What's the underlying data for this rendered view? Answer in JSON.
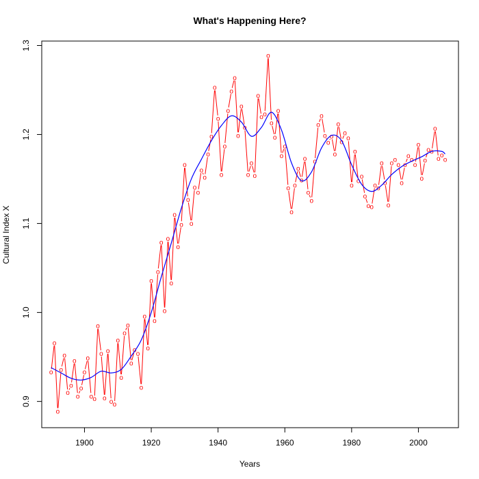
{
  "chart_data": {
    "type": "line",
    "title": "What's Happening Here?",
    "xlabel": "Years",
    "ylabel": "Cultural Index X",
    "xlim": [
      1887.2,
      2012
    ],
    "ylim": [
      0.8705,
      1.305
    ],
    "x_ticks": [
      1900,
      1920,
      1940,
      1960,
      1980,
      2000
    ],
    "y_ticks": [
      0.9,
      1.0,
      1.1,
      1.2,
      1.3
    ],
    "x_tick_labels": [
      "1900",
      "1920",
      "1940",
      "1960",
      "1980",
      "2000"
    ],
    "y_tick_labels": [
      "0.9",
      "1.0",
      "1.1",
      "1.2",
      "1.3"
    ],
    "grid": false,
    "point_symbol": "o",
    "series": [
      {
        "style": "points-and-lines",
        "color": "#ff0000",
        "x": [
          1890,
          1891,
          1892,
          1893,
          1894,
          1895,
          1896,
          1897,
          1898,
          1899,
          1900,
          1901,
          1902,
          1903,
          1904,
          1905,
          1906,
          1907,
          1908,
          1909,
          1910,
          1911,
          1912,
          1913,
          1914,
          1915,
          1916,
          1917,
          1918,
          1919,
          1920,
          1921,
          1922,
          1923,
          1924,
          1925,
          1926,
          1927,
          1928,
          1929,
          1930,
          1931,
          1932,
          1933,
          1934,
          1935,
          1936,
          1937,
          1938,
          1939,
          1940,
          1941,
          1942,
          1943,
          1944,
          1945,
          1946,
          1947,
          1948,
          1949,
          1950,
          1951,
          1952,
          1953,
          1954,
          1955,
          1956,
          1957,
          1958,
          1959,
          1960,
          1961,
          1962,
          1963,
          1964,
          1965,
          1966,
          1967,
          1968,
          1969,
          1970,
          1971,
          1972,
          1973,
          1974,
          1975,
          1976,
          1977,
          1978,
          1979,
          1980,
          1981,
          1982,
          1983,
          1984,
          1985,
          1986,
          1987,
          1988,
          1989,
          1990,
          1991,
          1992,
          1993,
          1994,
          1995,
          1996,
          1997,
          1998,
          1999,
          2000,
          2001,
          2002,
          2003,
          2004,
          2005,
          2006,
          2007,
          2008
        ],
        "y": [
          0.933,
          0.966,
          0.889,
          0.936,
          0.952,
          0.91,
          0.918,
          0.946,
          0.906,
          0.915,
          0.933,
          0.949,
          0.906,
          0.903,
          0.985,
          0.954,
          0.904,
          0.957,
          0.9,
          0.897,
          0.969,
          0.927,
          0.977,
          0.986,
          0.943,
          0.958,
          0.954,
          0.916,
          0.996,
          0.96,
          1.036,
          0.991,
          1.046,
          1.079,
          1.002,
          1.083,
          1.033,
          1.11,
          1.074,
          1.099,
          1.166,
          1.127,
          1.1,
          1.141,
          1.135,
          1.16,
          1.152,
          1.178,
          1.198,
          1.253,
          1.218,
          1.155,
          1.187,
          1.227,
          1.249,
          1.264,
          1.199,
          1.232,
          1.208,
          1.155,
          1.168,
          1.154,
          1.244,
          1.22,
          1.223,
          1.289,
          1.213,
          1.197,
          1.227,
          1.176,
          1.187,
          1.14,
          1.113,
          1.143,
          1.162,
          1.149,
          1.173,
          1.135,
          1.126,
          1.17,
          1.211,
          1.221,
          1.199,
          1.191,
          1.198,
          1.178,
          1.212,
          1.192,
          1.202,
          1.196,
          1.143,
          1.181,
          1.148,
          1.153,
          1.131,
          1.12,
          1.119,
          1.143,
          1.14,
          1.168,
          1.146,
          1.121,
          1.168,
          1.172,
          1.166,
          1.146,
          1.166,
          1.176,
          1.172,
          1.166,
          1.189,
          1.151,
          1.171,
          1.183,
          1.181,
          1.207,
          1.173,
          1.177,
          1.172
        ]
      },
      {
        "style": "smooth-line",
        "color": "#0000ff",
        "x": [
          1890,
          1893,
          1896,
          1899,
          1902,
          1905,
          1908,
          1911,
          1914,
          1917,
          1920,
          1923,
          1926,
          1929,
          1932,
          1935,
          1938,
          1941,
          1944,
          1947,
          1950,
          1953,
          1956,
          1959,
          1962,
          1965,
          1968,
          1971,
          1974,
          1977,
          1980,
          1983,
          1986,
          1989,
          1992,
          1995,
          1998,
          2001,
          2004,
          2007,
          2008
        ],
        "y": [
          0.938,
          0.932,
          0.926,
          0.924,
          0.927,
          0.934,
          0.932,
          0.936,
          0.951,
          0.969,
          1.0,
          1.04,
          1.078,
          1.117,
          1.15,
          1.172,
          1.193,
          1.21,
          1.221,
          1.214,
          1.198,
          1.208,
          1.225,
          1.205,
          1.168,
          1.148,
          1.158,
          1.185,
          1.199,
          1.193,
          1.166,
          1.144,
          1.136,
          1.143,
          1.155,
          1.164,
          1.17,
          1.175,
          1.181,
          1.181,
          1.178
        ]
      }
    ]
  }
}
